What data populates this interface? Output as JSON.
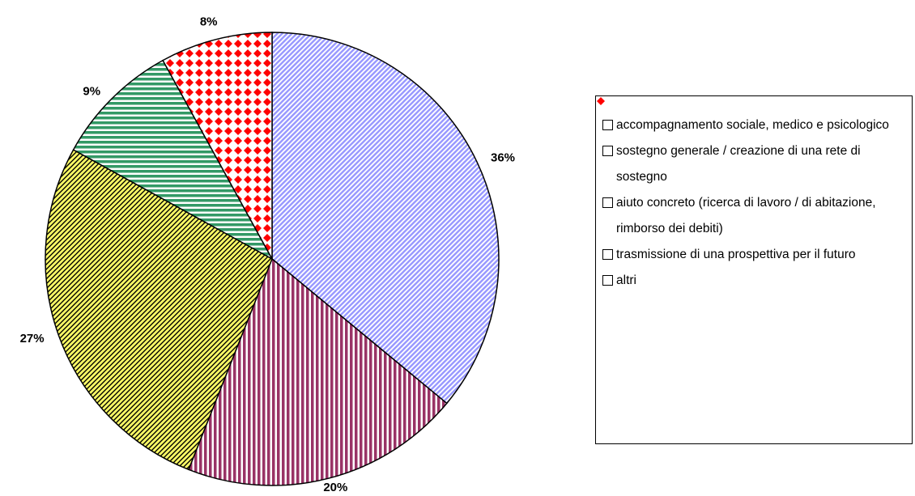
{
  "chart_data": {
    "type": "pie",
    "categories": [
      "accompagnamento sociale, medico e psicologico",
      "sostegno generale / creazione di una rete di sostegno",
      "aiuto concreto (ricerca di lavoro / di abitazione, rimborso dei debiti)",
      "trasmissione di una prospettiva per il futuro",
      "altri"
    ],
    "values": [
      36,
      20,
      27,
      9,
      8
    ],
    "value_labels": [
      "36%",
      "20%",
      "27%",
      "9%",
      "8%"
    ],
    "colors": [
      "#9999ff",
      "#993366",
      "#ffff66",
      "#339966",
      "#ff0000"
    ],
    "legend": "right"
  }
}
